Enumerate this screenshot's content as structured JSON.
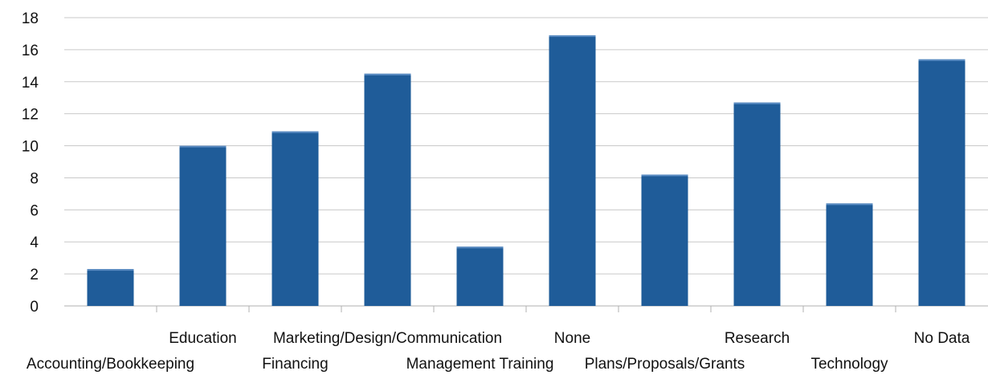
{
  "chart_data": {
    "type": "bar",
    "title": "",
    "xlabel": "",
    "ylabel": "",
    "ylim": [
      0,
      18
    ],
    "yticks": [
      0,
      2,
      4,
      6,
      8,
      10,
      12,
      14,
      16,
      18
    ],
    "grid": true,
    "legend": "none",
    "categories": [
      "Accounting/Bookkeeping",
      "Education",
      "Financing",
      "Marketing/Design/Communication",
      "Management Training",
      "None",
      "Plans/Proposals/Grants",
      "Research",
      "Technology",
      "No Data"
    ],
    "values": [
      2.3,
      10.0,
      10.9,
      14.5,
      3.7,
      16.9,
      8.2,
      12.7,
      6.4,
      15.4
    ],
    "bar_color": "#1f5c99"
  }
}
